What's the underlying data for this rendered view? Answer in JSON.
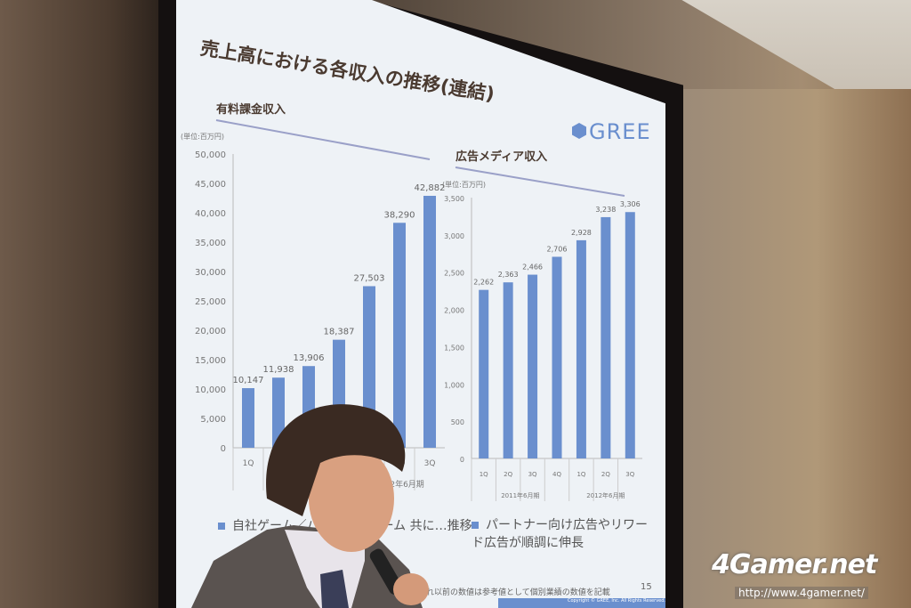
{
  "slide": {
    "title": "売上高における各収入の推移(連結)",
    "logo_text": "GREE",
    "bullets": [
      "自社ゲーム／パートナーゲーム 共に…推移",
      "パートナー向け広告やリワード広告が順調に伸長"
    ],
    "footnote": "…れ以前の数値は参考値として個別業績の数値を記載",
    "page_number": "15",
    "copyright": "Copyright © GREE, Inc. All Rights Reserved."
  },
  "watermark": {
    "brand": "4Gamer.net",
    "url": "http://www.4gamer.net/"
  },
  "colors": {
    "bar": "#6a8fce",
    "slide_bg": "#eef2f6"
  },
  "chart_data": [
    {
      "type": "bar",
      "title": "有料課金収入",
      "unit_label": "(単位:百万円)",
      "categories": [
        "1Q",
        "2Q",
        "3Q",
        "4Q",
        "1Q",
        "2Q",
        "3Q"
      ],
      "group_labels": [
        "2011年6月期",
        "2012年6月期"
      ],
      "values": [
        10147,
        11938,
        13906,
        18387,
        27503,
        38290,
        42882
      ],
      "value_labels": [
        "10,147",
        "11,938",
        "13,906",
        "18,387",
        "27,503",
        "38,290",
        "42,882"
      ],
      "ylim": [
        0,
        50000
      ],
      "yticks": [
        "0",
        "5,000",
        "10,000",
        "15,000",
        "20,000",
        "25,000",
        "30,000",
        "35,000",
        "40,000",
        "45,000",
        "50,000"
      ]
    },
    {
      "type": "bar",
      "title": "広告メディア収入",
      "unit_label": "(単位:百万円)",
      "categories": [
        "1Q",
        "2Q",
        "3Q",
        "4Q",
        "1Q",
        "2Q",
        "3Q"
      ],
      "group_labels": [
        "2011年6月期",
        "2012年6月期"
      ],
      "values": [
        2262,
        2363,
        2466,
        2706,
        2928,
        3238,
        3306
      ],
      "value_labels": [
        "2,262",
        "2,363",
        "2,466",
        "2,706",
        "2,928",
        "3,238",
        "3,306"
      ],
      "ylim": [
        0,
        3500
      ],
      "yticks": [
        "0",
        "500",
        "1,000",
        "1,500",
        "2,000",
        "2,500",
        "3,000",
        "3,500"
      ]
    }
  ]
}
